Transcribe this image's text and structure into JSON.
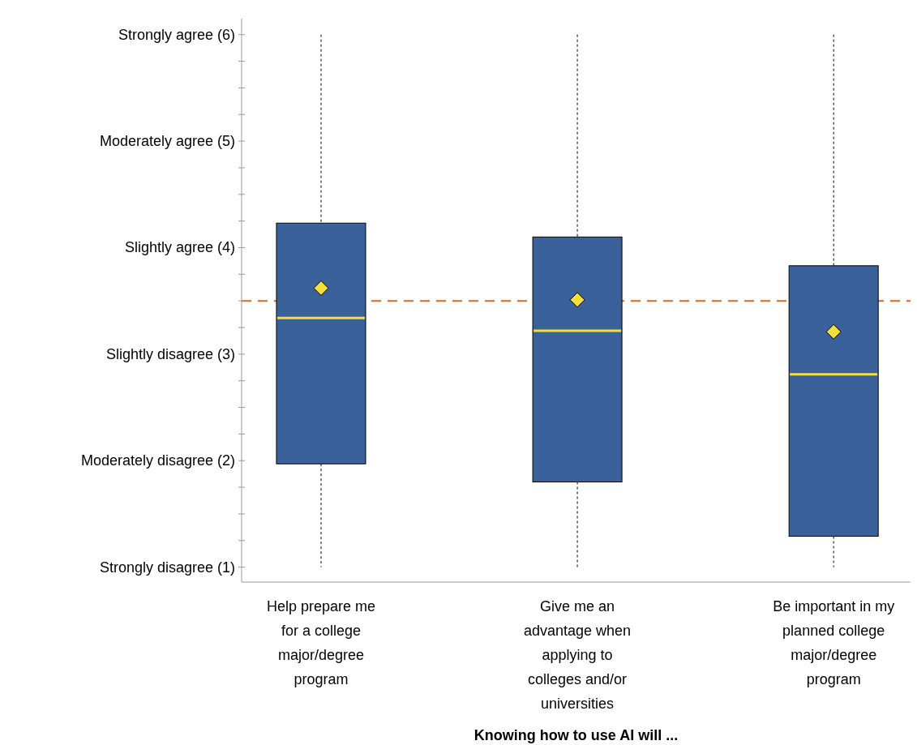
{
  "chart_data": {
    "type": "box",
    "xlabel": "Knowing how to use AI will ...",
    "categories": [
      "Help prepare me for a college major/degree program",
      "Give me an advantage when applying to colleges and/or universities",
      "Be important in my planned college major/degree program"
    ],
    "color": "#3b619b",
    "boxes": [
      {
        "low": 1,
        "q1": 1.97,
        "median": 3.34,
        "q3": 4.23,
        "high": 6,
        "mean": 3.62
      },
      {
        "low": 1,
        "q1": 1.8,
        "median": 3.22,
        "q3": 4.1,
        "high": 6,
        "mean": 3.51
      },
      {
        "low": 1,
        "q1": 1.29,
        "median": 2.81,
        "q3": 3.83,
        "high": 6,
        "mean": 3.21
      }
    ],
    "ylim": [
      0.86,
      6.15
    ],
    "yticks": [
      {
        "value": 1,
        "label": "Strongly disagree (1)"
      },
      {
        "value": 1.25,
        "label": null
      },
      {
        "value": 1.5,
        "label": null
      },
      {
        "value": 1.75,
        "label": null
      },
      {
        "value": 2,
        "label": "Moderately disagree (2)"
      },
      {
        "value": 2.25,
        "label": null
      },
      {
        "value": 2.5,
        "label": null
      },
      {
        "value": 2.75,
        "label": null
      },
      {
        "value": 3,
        "label": "Slightly disagree (3)"
      },
      {
        "value": 3.25,
        "label": null
      },
      {
        "value": 3.5,
        "label": null
      },
      {
        "value": 3.75,
        "label": null
      },
      {
        "value": 4,
        "label": "Slightly agree (4)"
      },
      {
        "value": 4.25,
        "label": null
      },
      {
        "value": 4.5,
        "label": null
      },
      {
        "value": 4.75,
        "label": null
      },
      {
        "value": 5,
        "label": "Moderately agree (5)"
      },
      {
        "value": 5.25,
        "label": null
      },
      {
        "value": 5.5,
        "label": null
      },
      {
        "value": 5.75,
        "label": null
      },
      {
        "value": 6,
        "label": "Strongly agree (6)"
      }
    ],
    "ref_lines": [
      {
        "axis": "y",
        "value": 3.5,
        "label": null,
        "color": "#d8691f",
        "line_style": "dashed"
      }
    ],
    "grid": false
  }
}
